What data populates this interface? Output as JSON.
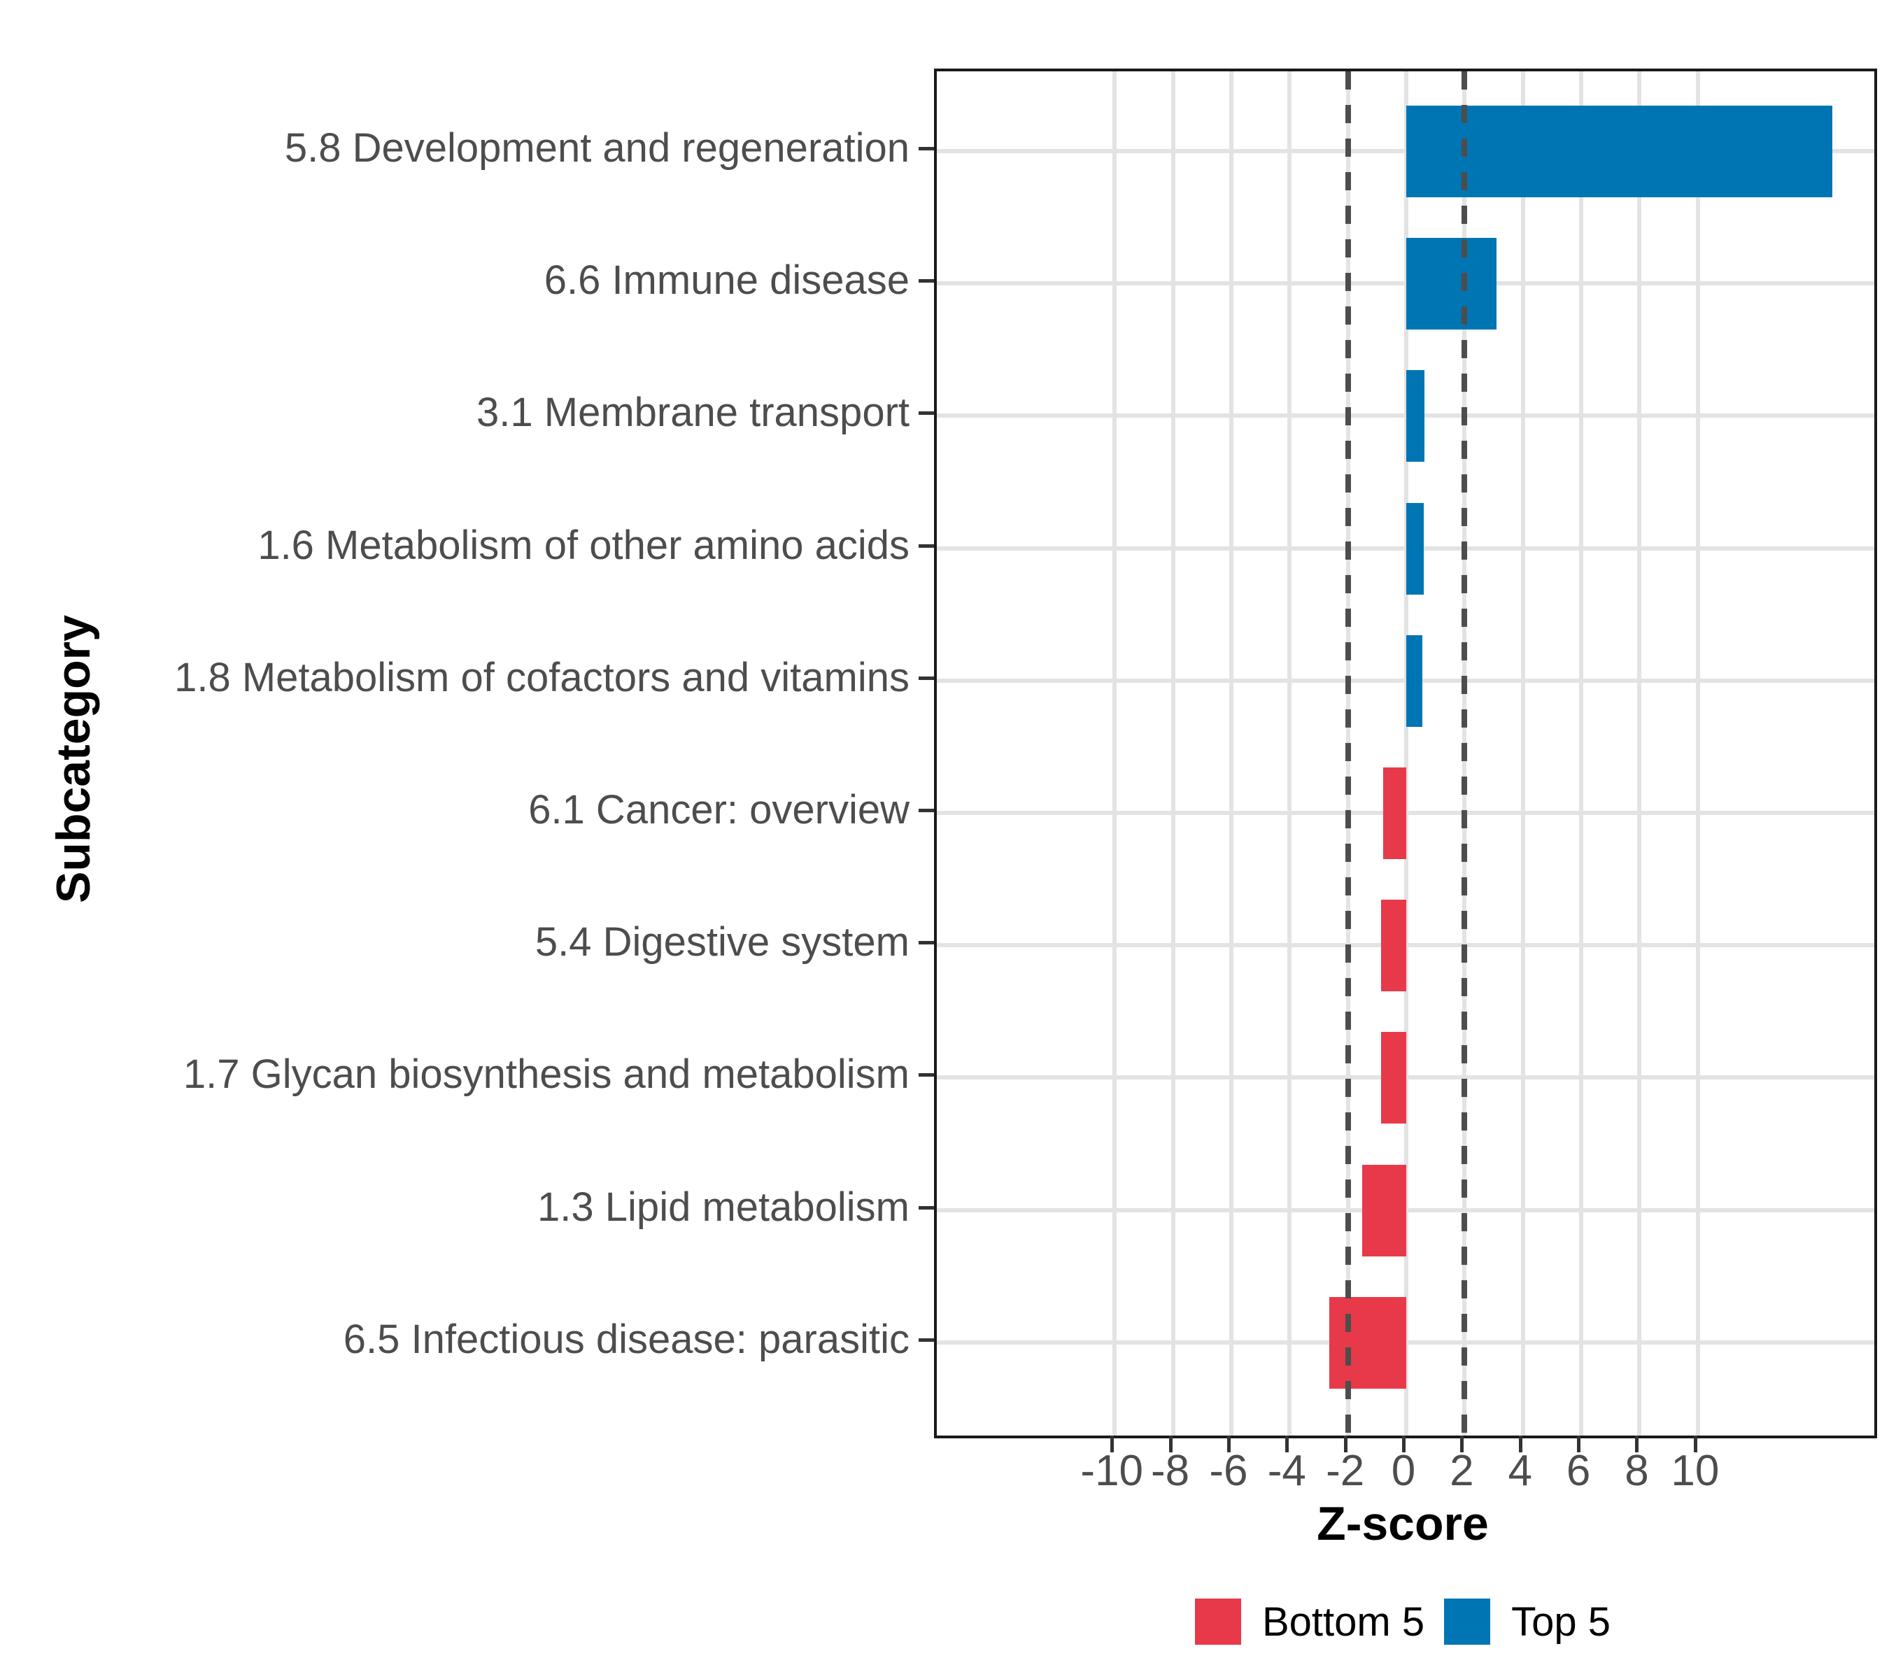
{
  "chart_data": {
    "type": "bar",
    "orientation": "horizontal",
    "title": "",
    "xlabel": "Z-score",
    "ylabel": "Subcategory",
    "xlim": [
      -16.1,
      16.05
    ],
    "x_ticks": [
      -10,
      -8,
      -6,
      -4,
      -2,
      0,
      2,
      4,
      6,
      8,
      10
    ],
    "reference_lines_dashed": [
      -2,
      2
    ],
    "grid": "major vertical gridlines at ticks, horizontal gridline per category row",
    "categories": [
      "5.8 Development and regeneration",
      "6.6 Immune disease",
      "3.1 Membrane transport",
      "1.6 Metabolism of other amino acids",
      "1.8 Metabolism of cofactors and vitamins",
      "6.1 Cancer: overview",
      "5.4 Digestive system",
      "1.7 Glycan biosynthesis and metabolism",
      "1.3 Lipid metabolism",
      "6.5 Infectious disease: parasitic"
    ],
    "values": [
      14.6,
      3.1,
      0.62,
      0.6,
      0.55,
      -0.79,
      -0.86,
      -0.87,
      -1.51,
      -2.64
    ],
    "groups": [
      "Top 5",
      "Top 5",
      "Top 5",
      "Top 5",
      "Top 5",
      "Bottom 5",
      "Bottom 5",
      "Bottom 5",
      "Bottom 5",
      "Bottom 5"
    ],
    "legend": {
      "position": "bottom",
      "entries": [
        {
          "label": "Bottom 5",
          "color": "#E8394A"
        },
        {
          "label": "Top 5",
          "color": "#0075B4"
        }
      ]
    },
    "colors": {
      "top5": "#0075B4",
      "bottom5": "#E8394A",
      "gridline": "#e3e3e3",
      "axis_text": "#4d4d4d",
      "reference_line": "#4d4d4d",
      "panel_border": "#1a1a1a"
    }
  }
}
